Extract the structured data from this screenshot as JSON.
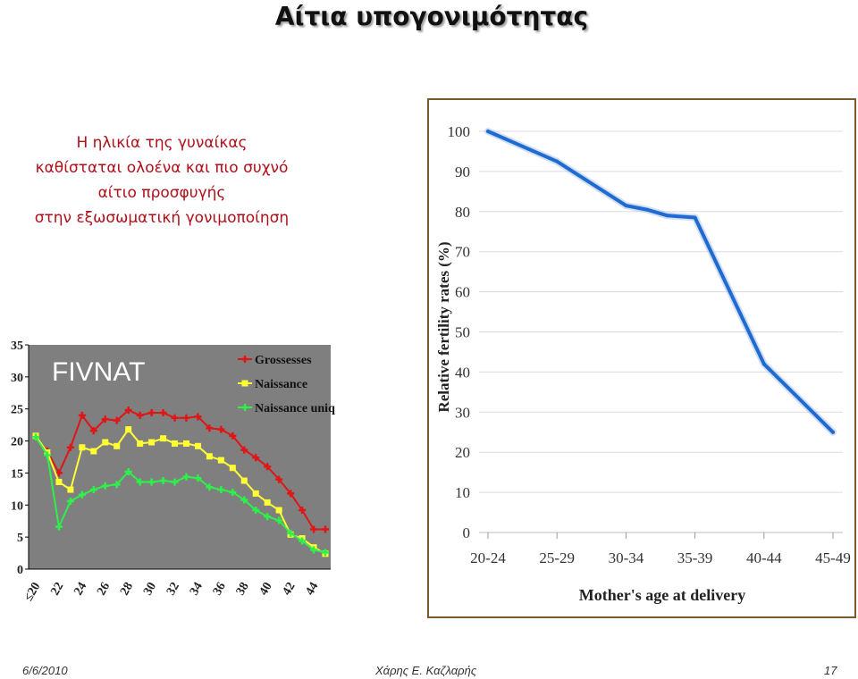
{
  "slide": {
    "title": "Αίτια υπογονιμότητας",
    "intro_lines": [
      "Η ηλικία της γυναίκας",
      "καθίσταται ολοένα και πιο συχνό",
      "αίτιο προσφυγής",
      "στην εξωσωματική γονιμοποίηση"
    ],
    "footer": {
      "date": "6/6/2010",
      "author": "Χάρης Ε. Καζλαρής",
      "page": "17"
    }
  },
  "chart_data": [
    {
      "type": "line",
      "title": "",
      "watermark": "FIVNAT",
      "xlabel": "",
      "ylabel": "",
      "ylim": [
        0,
        35
      ],
      "y_ticks": [
        0,
        5,
        10,
        15,
        20,
        25,
        30,
        35
      ],
      "x_tick_labels": [
        "≤20",
        "22",
        "24",
        "26",
        "28",
        "30",
        "32",
        "34",
        "36",
        "38",
        "40",
        "42",
        "44"
      ],
      "plot_background": "#7f7f7f",
      "legend_position": "top-right",
      "series": [
        {
          "name": "Grossesses",
          "color": "#e01515",
          "values": [
            20.6,
            18.4,
            15,
            19,
            24,
            21.6,
            23.4,
            23.2,
            24.8,
            24,
            24.4,
            24.4,
            23.6,
            23.6,
            23.8,
            22,
            21.8,
            20.8,
            18.6,
            17.4,
            16,
            14,
            11.8,
            9.2,
            6.2,
            6.2
          ]
        },
        {
          "name": "Naissance",
          "color": "#ffff33",
          "values": [
            20.8,
            18.2,
            13.6,
            12.4,
            19,
            18.4,
            19.8,
            19.2,
            21.8,
            19.6,
            19.8,
            20.4,
            19.6,
            19.6,
            19.2,
            17.6,
            17,
            15.8,
            13.8,
            11.8,
            10.4,
            9.2,
            5.4,
            4.8,
            3.4,
            2.4
          ]
        },
        {
          "name": "Naissance unique",
          "color": "#2ef04a",
          "values": [
            20.6,
            17.8,
            6.6,
            10.6,
            11.6,
            12.4,
            13,
            13.2,
            15.2,
            13.6,
            13.6,
            13.8,
            13.6,
            14.4,
            14.2,
            12.8,
            12.4,
            12,
            10.8,
            9.2,
            8.2,
            7.6,
            5.6,
            4.4,
            3,
            2.6
          ]
        }
      ]
    },
    {
      "type": "line",
      "title": "",
      "xlabel": "Mother's age at delivery",
      "ylabel": "Relative fertility rates (%)",
      "ylim": [
        0,
        100
      ],
      "y_ticks": [
        0,
        10,
        20,
        30,
        40,
        50,
        60,
        70,
        80,
        90,
        100
      ],
      "categories": [
        "20-24",
        "25-29",
        "30-34",
        "35-39",
        "40-44",
        "45-49"
      ],
      "grid": true,
      "series": [
        {
          "name": "",
          "color": "#1f6bd1",
          "x": [
            0,
            1,
            2,
            2.3,
            2.6,
            3,
            4,
            5
          ],
          "values": [
            100,
            92.5,
            81.5,
            80.5,
            79,
            78.5,
            42,
            25
          ]
        }
      ]
    }
  ]
}
